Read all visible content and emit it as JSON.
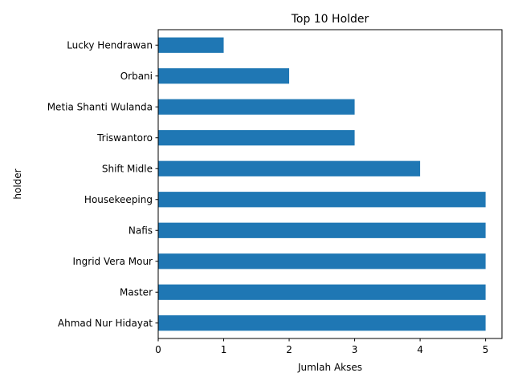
{
  "chart_data": {
    "type": "bar",
    "orientation": "horizontal",
    "title": "Top 10 Holder",
    "xlabel": "Jumlah Akses",
    "ylabel": "holder",
    "categories": [
      "Ahmad Nur Hidayat",
      "Master",
      "Ingrid Vera Mour",
      "Nafis",
      "Housekeeping",
      "Shift Midle",
      "Triswantoro",
      "Metia Shanti Wulanda",
      "Orbani",
      "Lucky Hendrawan"
    ],
    "values": [
      5,
      5,
      5,
      5,
      5,
      4,
      3,
      3,
      2,
      1
    ],
    "xlim": [
      0,
      5.25
    ],
    "xticks": [
      "0",
      "1",
      "2",
      "3",
      "4",
      "5"
    ],
    "grid": false,
    "legend": "none",
    "bar_color": "#1f77b4"
  }
}
